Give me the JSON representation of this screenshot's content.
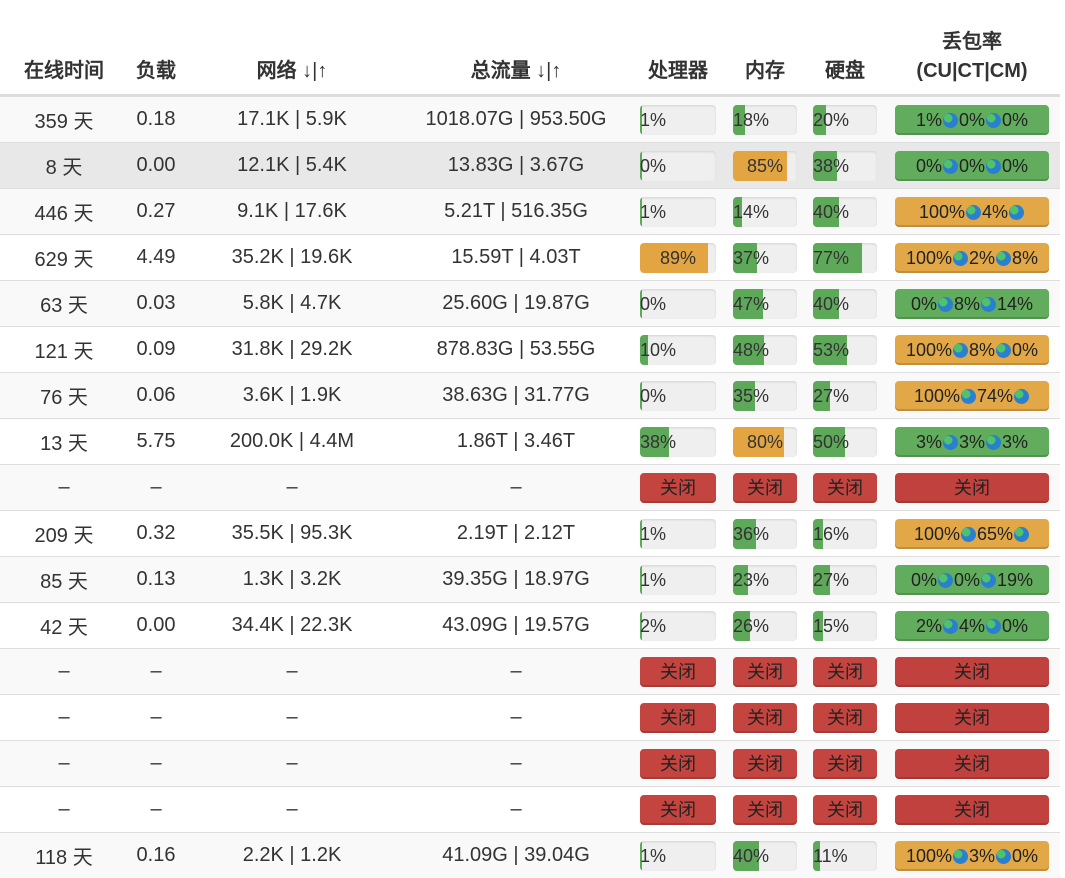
{
  "headers": {
    "uptime": "在线时间",
    "load": "负载",
    "network": "网络",
    "network_sort": "↓|↑",
    "traffic": "总流量",
    "traffic_sort": "↓|↑",
    "cpu": "处理器",
    "memory": "内存",
    "disk": "硬盘",
    "packet_loss_1": "丢包率",
    "packet_loss_2": "(CU|CT|CM)"
  },
  "colors": {
    "ok": "#5ea85a",
    "warn": "#e3a542",
    "offline": "#c0413e"
  },
  "icon": "globe-icon",
  "rows": [
    {
      "uptime": "359 天",
      "load": "0.18",
      "network": "17.1K | 5.9K",
      "traffic": "1018.07G | 953.50G",
      "cpu": 1,
      "mem": 18,
      "disk": 20,
      "loss": [
        "1%",
        "0%",
        "0%"
      ],
      "loss_status": "ok",
      "offline": false
    },
    {
      "uptime": "8 天",
      "load": "0.00",
      "network": "12.1K | 5.4K",
      "traffic": "13.83G | 3.67G",
      "cpu": 0,
      "mem": 85,
      "disk": 38,
      "loss": [
        "0%",
        "0%",
        "0%"
      ],
      "loss_status": "ok",
      "offline": false
    },
    {
      "uptime": "446 天",
      "load": "0.27",
      "network": "9.1K | 17.6K",
      "traffic": "5.21T | 516.35G",
      "cpu": 1,
      "mem": 14,
      "disk": 40,
      "loss": [
        "100%",
        "4%",
        ""
      ],
      "loss_status": "warn",
      "offline": false
    },
    {
      "uptime": "629 天",
      "load": "4.49",
      "network": "35.2K | 19.6K",
      "traffic": "15.59T | 4.03T",
      "cpu": 89,
      "mem": 37,
      "disk": 77,
      "loss": [
        "100%",
        "2%",
        "8%"
      ],
      "loss_status": "warn",
      "offline": false
    },
    {
      "uptime": "63 天",
      "load": "0.03",
      "network": "5.8K | 4.7K",
      "traffic": "25.60G | 19.87G",
      "cpu": 0,
      "mem": 47,
      "disk": 40,
      "loss": [
        "0%",
        "8%",
        "14%"
      ],
      "loss_status": "ok",
      "offline": false
    },
    {
      "uptime": "121 天",
      "load": "0.09",
      "network": "31.8K | 29.2K",
      "traffic": "878.83G | 53.55G",
      "cpu": 10,
      "mem": 48,
      "disk": 53,
      "loss": [
        "100%",
        "8%",
        "0%"
      ],
      "loss_status": "warn",
      "offline": false
    },
    {
      "uptime": "76 天",
      "load": "0.06",
      "network": "3.6K | 1.9K",
      "traffic": "38.63G | 31.77G",
      "cpu": 0,
      "mem": 35,
      "disk": 27,
      "loss": [
        "100%",
        "74%",
        ""
      ],
      "loss_status": "warn",
      "offline": false
    },
    {
      "uptime": "13 天",
      "load": "5.75",
      "network": "200.0K | 4.4M",
      "traffic": "1.86T | 3.46T",
      "cpu": 38,
      "mem": 80,
      "disk": 50,
      "loss": [
        "3%",
        "3%",
        "3%"
      ],
      "loss_status": "ok",
      "offline": false
    },
    {
      "uptime": "–",
      "load": "–",
      "network": "–",
      "traffic": "–",
      "offline": true,
      "offline_label": "关闭"
    },
    {
      "uptime": "209 天",
      "load": "0.32",
      "network": "35.5K | 95.3K",
      "traffic": "2.19T | 2.12T",
      "cpu": 1,
      "mem": 36,
      "disk": 16,
      "loss": [
        "100%",
        "65%",
        ""
      ],
      "loss_status": "warn",
      "offline": false
    },
    {
      "uptime": "85 天",
      "load": "0.13",
      "network": "1.3K | 3.2K",
      "traffic": "39.35G | 18.97G",
      "cpu": 1,
      "mem": 23,
      "disk": 27,
      "loss": [
        "0%",
        "0%",
        "19%"
      ],
      "loss_status": "ok",
      "offline": false
    },
    {
      "uptime": "42 天",
      "load": "0.00",
      "network": "34.4K | 22.3K",
      "traffic": "43.09G | 19.57G",
      "cpu": 2,
      "mem": 26,
      "disk": 15,
      "loss": [
        "2%",
        "4%",
        "0%"
      ],
      "loss_status": "ok",
      "offline": false
    },
    {
      "uptime": "–",
      "load": "–",
      "network": "–",
      "traffic": "–",
      "offline": true,
      "offline_label": "关闭"
    },
    {
      "uptime": "–",
      "load": "–",
      "network": "–",
      "traffic": "–",
      "offline": true,
      "offline_label": "关闭"
    },
    {
      "uptime": "–",
      "load": "–",
      "network": "–",
      "traffic": "–",
      "offline": true,
      "offline_label": "关闭"
    },
    {
      "uptime": "–",
      "load": "–",
      "network": "–",
      "traffic": "–",
      "offline": true,
      "offline_label": "关闭"
    },
    {
      "uptime": "118 天",
      "load": "0.16",
      "network": "2.2K | 1.2K",
      "traffic": "41.09G | 39.04G",
      "cpu": 1,
      "mem": 40,
      "disk": 11,
      "loss": [
        "100%",
        "3%",
        "0%"
      ],
      "loss_status": "warn",
      "offline": false
    }
  ]
}
